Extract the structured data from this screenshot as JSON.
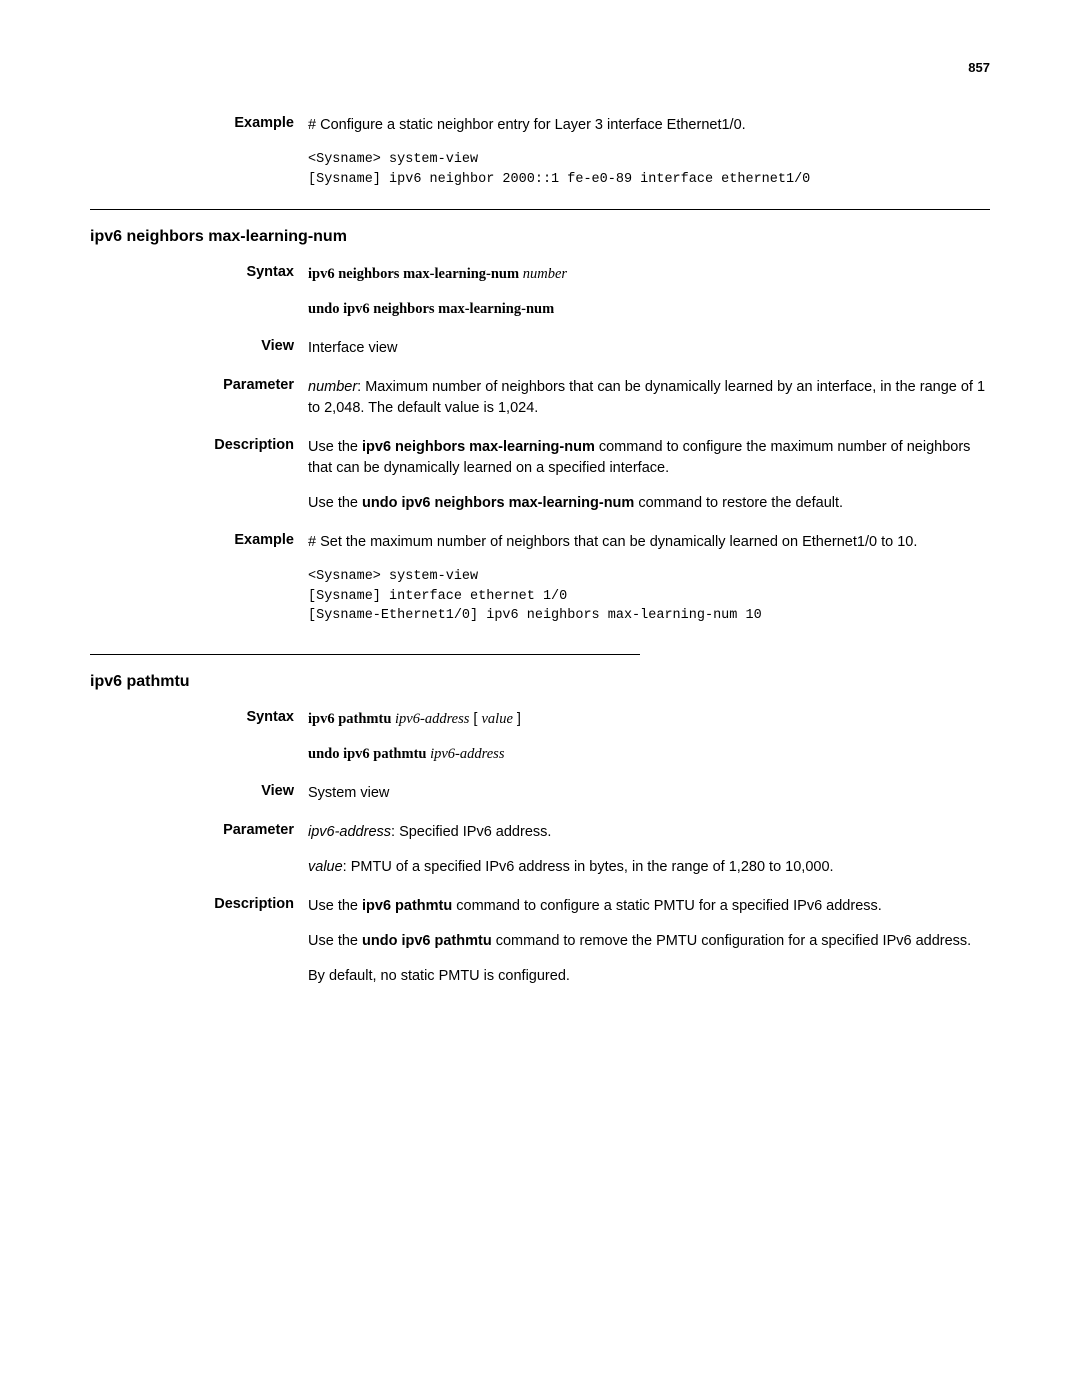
{
  "page_number": "857",
  "top_example": {
    "label": "Example",
    "text": "# Configure a static neighbor entry for Layer 3 interface Ethernet1/0.",
    "code": "<Sysname> system-view\n[Sysname] ipv6 neighbor 2000::1 fe-e0-89 interface ethernet1/0"
  },
  "section1": {
    "title": "ipv6 neighbors max-learning-num",
    "syntax": {
      "label": "Syntax",
      "cmd_bold": "ipv6 neighbors max-learning-num ",
      "cmd_arg": "number",
      "undo_bold": "undo ipv6 neighbors max-learning-num"
    },
    "view": {
      "label": "View",
      "text": "Interface view"
    },
    "parameter": {
      "label": "Parameter",
      "param_name": "number",
      "param_text": ": Maximum number of neighbors that can be dynamically learned by an interface, in the range of 1 to 2,048. The default value is 1,024."
    },
    "description": {
      "label": "Description",
      "p1_pre": "Use the ",
      "p1_bold": "ipv6 neighbors max-learning-num",
      "p1_post": " command to configure the maximum number of neighbors that can be dynamically learned on a specified interface.",
      "p2_pre": "Use the ",
      "p2_bold": "undo ipv6 neighbors max-learning-num",
      "p2_post": " command to restore the default."
    },
    "example": {
      "label": "Example",
      "text": "# Set the maximum number of neighbors that can be dynamically learned on Ethernet1/0 to 10.",
      "code": "<Sysname> system-view\n[Sysname] interface ethernet 1/0\n[Sysname-Ethernet1/0] ipv6 neighbors max-learning-num 10"
    }
  },
  "section2": {
    "title": "ipv6 pathmtu",
    "syntax": {
      "label": "Syntax",
      "cmd_bold": "ipv6 pathmtu ",
      "cmd_arg1": "ipv6-address",
      "cmd_mid": " [ ",
      "cmd_arg2": "value",
      "cmd_end": " ]",
      "undo_bold": "undo ipv6 pathmtu ",
      "undo_arg": "ipv6-address"
    },
    "view": {
      "label": "View",
      "text": "System view"
    },
    "parameter": {
      "label": "Parameter",
      "p1_name": "ipv6-address",
      "p1_text": ": Specified IPv6 address.",
      "p2_name": "value",
      "p2_text": ": PMTU of a specified IPv6 address in bytes, in the range of 1,280 to 10,000."
    },
    "description": {
      "label": "Description",
      "p1_pre": "Use the ",
      "p1_bold": "ipv6 pathmtu",
      "p1_post": " command to configure a static PMTU for a specified IPv6 address.",
      "p2_pre": "Use the ",
      "p2_bold": "undo ipv6 pathmtu",
      "p2_post": " command to remove the PMTU configuration for a specified IPv6 address.",
      "p3": "By default, no static PMTU is configured."
    }
  }
}
